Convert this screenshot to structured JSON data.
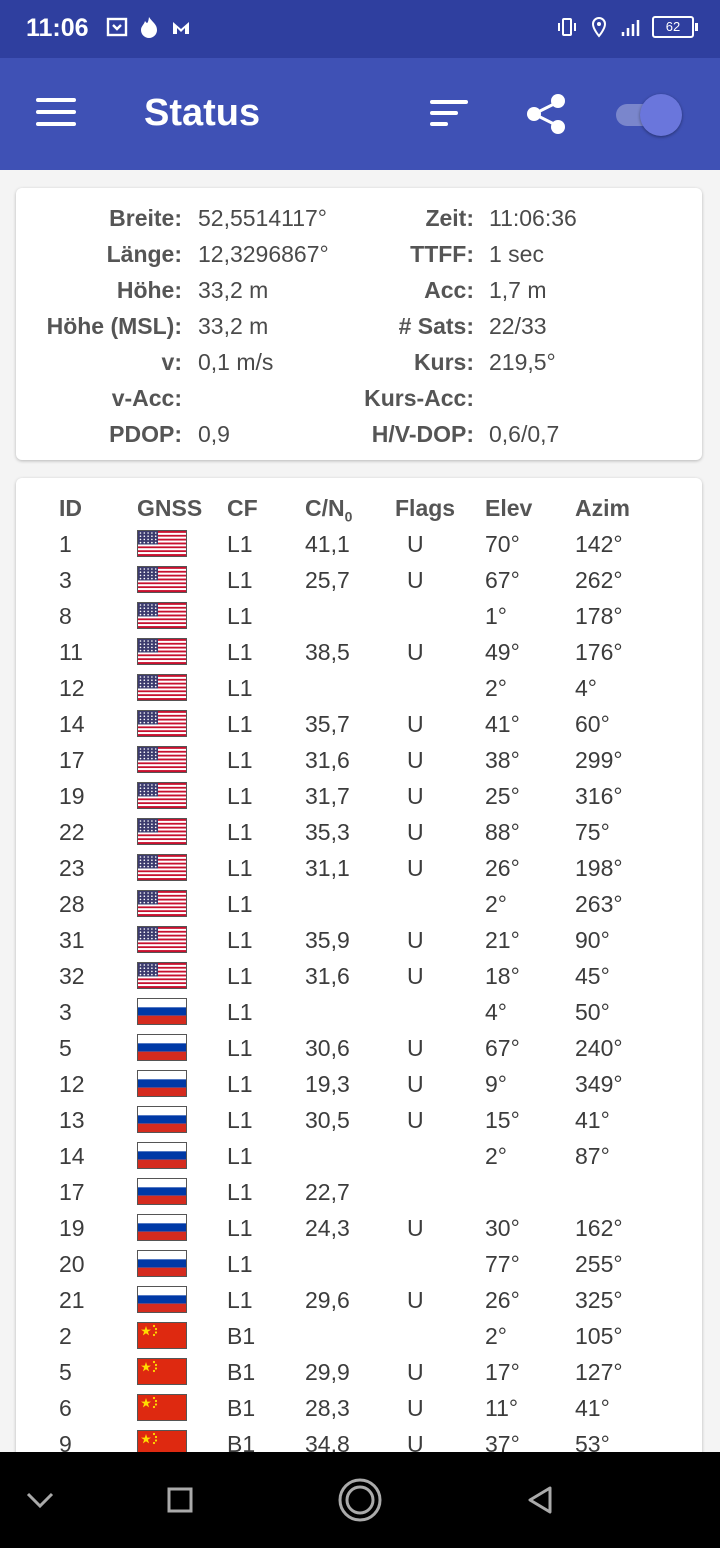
{
  "status_bar": {
    "time": "11:06",
    "battery": "62",
    "left_icons": [
      "download-box-icon",
      "flame-icon",
      "malwarebytes-icon"
    ],
    "right_icons": [
      "vibrate-icon",
      "location-icon",
      "signal-icon"
    ]
  },
  "app_bar": {
    "title": "Status",
    "accent": "#3f51b5"
  },
  "info": {
    "left": [
      {
        "label": "Breite:",
        "value": "52,5514117°"
      },
      {
        "label": "Länge:",
        "value": "12,3296867°"
      },
      {
        "label": "Höhe:",
        "value": "33,2 m"
      },
      {
        "label": "Höhe (MSL):",
        "value": "33,2 m"
      },
      {
        "label": "v:",
        "value": "0,1 m/s"
      },
      {
        "label": "v-Acc:",
        "value": ""
      },
      {
        "label": "PDOP:",
        "value": "0,9"
      }
    ],
    "right": [
      {
        "label": "Zeit:",
        "value": "11:06:36"
      },
      {
        "label": "TTFF:",
        "value": "1 sec"
      },
      {
        "label": "Acc:",
        "value": "1,7 m"
      },
      {
        "label": "# Sats:",
        "value": "22/33"
      },
      {
        "label": "Kurs:",
        "value": "219,5°"
      },
      {
        "label": "Kurs-Acc:",
        "value": ""
      },
      {
        "label": "H/V-DOP:",
        "value": "0,6/0,7"
      }
    ]
  },
  "table": {
    "headers": {
      "id": "ID",
      "gnss": "GNSS",
      "cf": "CF",
      "cn": "C/N",
      "cn_sub": "0",
      "flags": "Flags",
      "elev": "Elev",
      "azim": "Azim"
    },
    "rows": [
      {
        "id": "1",
        "gnss": "us",
        "cf": "L1",
        "cn": "41,1",
        "flags": "U",
        "elev": "70°",
        "azim": "142°"
      },
      {
        "id": "3",
        "gnss": "us",
        "cf": "L1",
        "cn": "25,7",
        "flags": "U",
        "elev": "67°",
        "azim": "262°"
      },
      {
        "id": "8",
        "gnss": "us",
        "cf": "L1",
        "cn": "",
        "flags": "",
        "elev": "1°",
        "azim": "178°"
      },
      {
        "id": "11",
        "gnss": "us",
        "cf": "L1",
        "cn": "38,5",
        "flags": "U",
        "elev": "49°",
        "azim": "176°"
      },
      {
        "id": "12",
        "gnss": "us",
        "cf": "L1",
        "cn": "",
        "flags": "",
        "elev": "2°",
        "azim": "4°"
      },
      {
        "id": "14",
        "gnss": "us",
        "cf": "L1",
        "cn": "35,7",
        "flags": "U",
        "elev": "41°",
        "azim": "60°"
      },
      {
        "id": "17",
        "gnss": "us",
        "cf": "L1",
        "cn": "31,6",
        "flags": "U",
        "elev": "38°",
        "azim": "299°"
      },
      {
        "id": "19",
        "gnss": "us",
        "cf": "L1",
        "cn": "31,7",
        "flags": "U",
        "elev": "25°",
        "azim": "316°"
      },
      {
        "id": "22",
        "gnss": "us",
        "cf": "L1",
        "cn": "35,3",
        "flags": "U",
        "elev": "88°",
        "azim": "75°"
      },
      {
        "id": "23",
        "gnss": "us",
        "cf": "L1",
        "cn": "31,1",
        "flags": "U",
        "elev": "26°",
        "azim": "198°"
      },
      {
        "id": "28",
        "gnss": "us",
        "cf": "L1",
        "cn": "",
        "flags": "",
        "elev": "2°",
        "azim": "263°"
      },
      {
        "id": "31",
        "gnss": "us",
        "cf": "L1",
        "cn": "35,9",
        "flags": "U",
        "elev": "21°",
        "azim": "90°"
      },
      {
        "id": "32",
        "gnss": "us",
        "cf": "L1",
        "cn": "31,6",
        "flags": "U",
        "elev": "18°",
        "azim": "45°"
      },
      {
        "id": "3",
        "gnss": "ru",
        "cf": "L1",
        "cn": "",
        "flags": "",
        "elev": "4°",
        "azim": "50°"
      },
      {
        "id": "5",
        "gnss": "ru",
        "cf": "L1",
        "cn": "30,6",
        "flags": "U",
        "elev": "67°",
        "azim": "240°"
      },
      {
        "id": "12",
        "gnss": "ru",
        "cf": "L1",
        "cn": "19,3",
        "flags": "U",
        "elev": "9°",
        "azim": "349°"
      },
      {
        "id": "13",
        "gnss": "ru",
        "cf": "L1",
        "cn": "30,5",
        "flags": "U",
        "elev": "15°",
        "azim": "41°"
      },
      {
        "id": "14",
        "gnss": "ru",
        "cf": "L1",
        "cn": "",
        "flags": "",
        "elev": "2°",
        "azim": "87°"
      },
      {
        "id": "17",
        "gnss": "ru",
        "cf": "L1",
        "cn": "22,7",
        "flags": "",
        "elev": "",
        "azim": ""
      },
      {
        "id": "19",
        "gnss": "ru",
        "cf": "L1",
        "cn": "24,3",
        "flags": "U",
        "elev": "30°",
        "azim": "162°"
      },
      {
        "id": "20",
        "gnss": "ru",
        "cf": "L1",
        "cn": "",
        "flags": "",
        "elev": "77°",
        "azim": "255°"
      },
      {
        "id": "21",
        "gnss": "ru",
        "cf": "L1",
        "cn": "29,6",
        "flags": "U",
        "elev": "26°",
        "azim": "325°"
      },
      {
        "id": "2",
        "gnss": "cn",
        "cf": "B1",
        "cn": "",
        "flags": "",
        "elev": "2°",
        "azim": "105°"
      },
      {
        "id": "5",
        "gnss": "cn",
        "cf": "B1",
        "cn": "29,9",
        "flags": "U",
        "elev": "17°",
        "azim": "127°"
      },
      {
        "id": "6",
        "gnss": "cn",
        "cf": "B1",
        "cn": "28,3",
        "flags": "U",
        "elev": "11°",
        "azim": "41°"
      },
      {
        "id": "9",
        "gnss": "cn",
        "cf": "B1",
        "cn": "34,8",
        "flags": "U",
        "elev": "37°",
        "azim": "53°"
      }
    ]
  },
  "nav_bar": {
    "buttons": [
      "back-chevron-icon",
      "recents-square-icon",
      "home-circle-icon",
      "back-triangle-icon"
    ]
  }
}
